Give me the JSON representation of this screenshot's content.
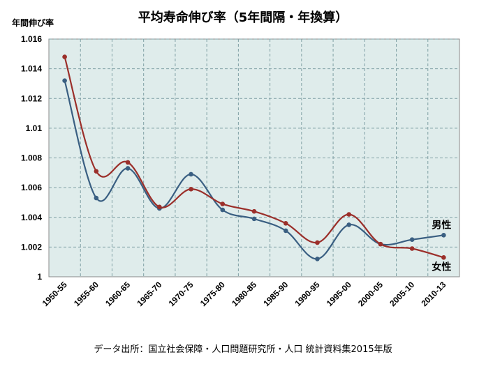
{
  "chart_data": {
    "type": "line",
    "title": "平均寿命伸び率（5年間隔・年換算）",
    "ylabel": "年間伸び率",
    "xlabel": "",
    "categories": [
      "1950-55",
      "1955-60",
      "1960-65",
      "1965-70",
      "1970-75",
      "1975-80",
      "1980-85",
      "1985-90",
      "1990-95",
      "1995-00",
      "2000-05",
      "2005-10",
      "2010-13"
    ],
    "ylim": [
      1,
      1.016
    ],
    "yticks": [
      1,
      1.002,
      1.004,
      1.006,
      1.008,
      1.01,
      1.012,
      1.014,
      1.016
    ],
    "ytick_labels": [
      "1",
      "1.002",
      "1.004",
      "1.006",
      "1.008",
      "1.01",
      "1.012",
      "1.014",
      "1.016"
    ],
    "grid": true,
    "series": [
      {
        "name": "男性",
        "color": "#3a5f82",
        "values": [
          1.0132,
          1.0053,
          1.0073,
          1.0046,
          1.0069,
          1.0045,
          1.0039,
          1.0031,
          1.0012,
          1.0035,
          1.0022,
          1.0025,
          1.0028
        ]
      },
      {
        "name": "女性",
        "color": "#9b2f2a",
        "values": [
          1.0148,
          1.0071,
          1.0077,
          1.0047,
          1.0059,
          1.0049,
          1.0044,
          1.0036,
          1.0023,
          1.0042,
          1.0022,
          1.0019,
          1.0013
        ]
      }
    ],
    "source": "データ出所：国立社会保障・人口問題研究所・人口 統計資料集2015年版",
    "plot_background": "#dfeceb",
    "grid_color": "#7f9fa4"
  }
}
